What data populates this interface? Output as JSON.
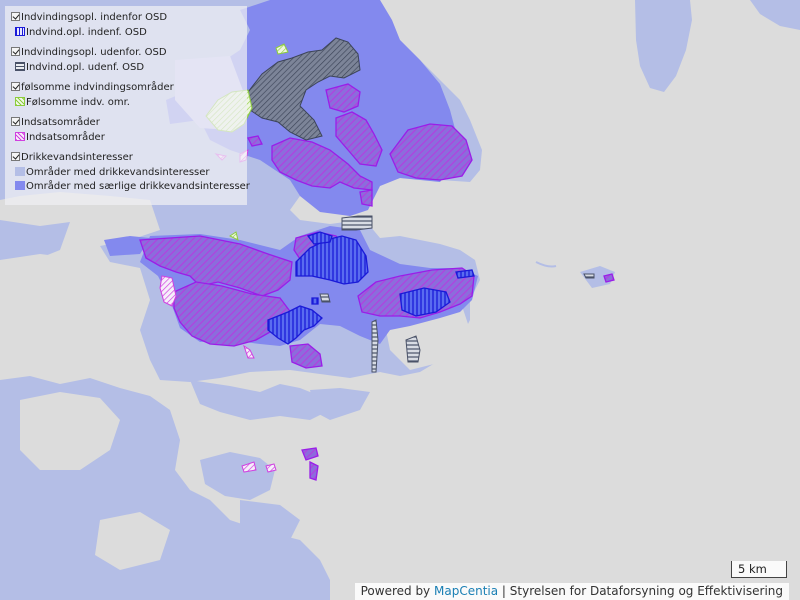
{
  "legend": {
    "groups": [
      {
        "title": "Indvindingsopl. indenfor OSD",
        "items": [
          "Indvind.opl. indenf. OSD"
        ]
      },
      {
        "title": "Indvindingsopl. udenfor. OSD",
        "items": [
          "Indvind.opl. udenf. OSD"
        ]
      },
      {
        "title": "følsomme indvindingsområder",
        "items": [
          "Følsomme indv. omr."
        ]
      },
      {
        "title": "Indsatsområder",
        "items": [
          "Indsatsområder"
        ]
      },
      {
        "title": "Drikkevandsinteresser",
        "items": [
          "Områder med drikkevandsinteresser",
          "Områder med særlige drikkevandsinteresser"
        ]
      }
    ]
  },
  "scale": {
    "label": "5 km"
  },
  "attribution": {
    "prefix": "Powered by",
    "link": "MapCentia",
    "suffix": "| Styrelsen for Dataforsyning og Effektivisering"
  },
  "colors": {
    "land": "#dcdcdc",
    "drikkevand": "#b4bee6",
    "saerlige": "#8389ee",
    "indsats": "#b73de8",
    "indvind_indenf": "#2a22f0",
    "indvind_udenf": "#4a5268",
    "folsomme": "#8ccc3c"
  }
}
